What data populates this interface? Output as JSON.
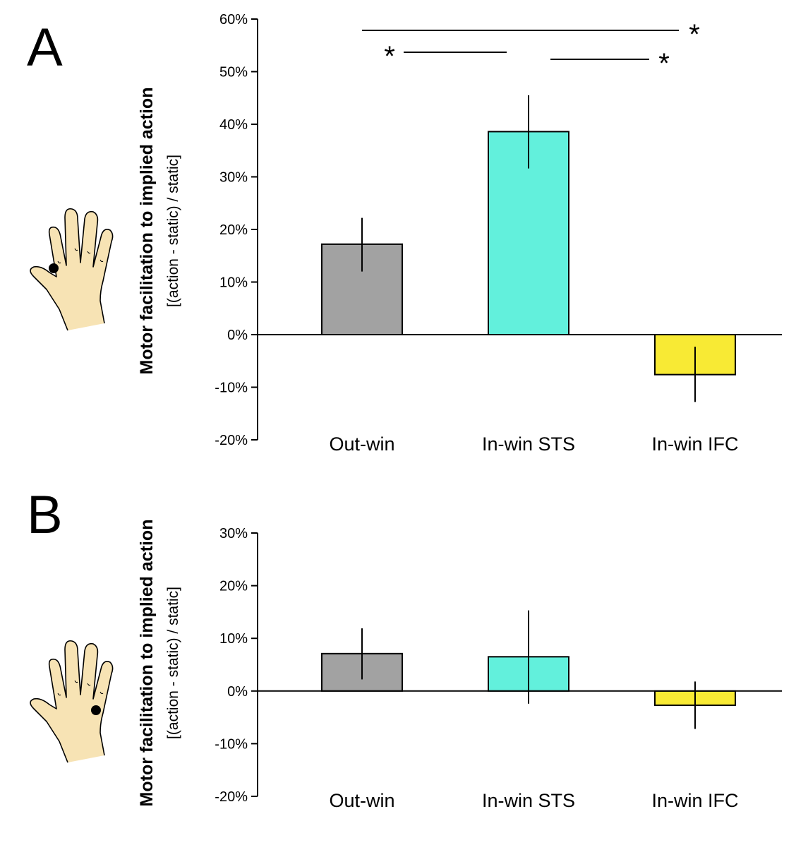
{
  "colors": {
    "out_win": "#a2a2a2",
    "in_win_sts": "#62f0dc",
    "in_win_ifc": "#f8ea34",
    "skin": "#f7e3b4",
    "axis": "#000000"
  },
  "chart_data": [
    {
      "type": "bar",
      "panel": "A",
      "categories": [
        "Out-win",
        "In-win STS",
        "In-win IFC"
      ],
      "values": [
        17.2,
        38.6,
        -7.6
      ],
      "error": [
        [
          12.0,
          22.2
        ],
        [
          31.6,
          45.5
        ],
        [
          -12.8,
          -2.3
        ]
      ],
      "ylabel": "Motor facilitation to implied action",
      "ylabel_sub": "[(action - static) / static]",
      "ylim": [
        -20,
        60
      ],
      "yticks": [
        60,
        50,
        40,
        30,
        20,
        10,
        0,
        -10,
        -20
      ],
      "ytick_labels": [
        "60%",
        "50%",
        "40%",
        "30%",
        "20%",
        "10%",
        "0%",
        "-10%",
        "-20%"
      ],
      "significance": [
        {
          "from": "Out-win",
          "to": "In-win IFC",
          "label": "*"
        },
        {
          "from": "Out-win",
          "to": "In-win STS",
          "label": "*"
        },
        {
          "from": "In-win STS",
          "to": "In-win IFC",
          "label": "*"
        }
      ],
      "icon": "hand-icon-index-site"
    },
    {
      "type": "bar",
      "panel": "B",
      "categories": [
        "Out-win",
        "In-win STS",
        "In-win IFC"
      ],
      "values": [
        7.1,
        6.5,
        -2.7
      ],
      "error": [
        [
          2.2,
          11.9
        ],
        [
          -2.4,
          15.3
        ],
        [
          -7.2,
          1.8
        ]
      ],
      "ylabel": "Motor facilitation to implied action",
      "ylabel_sub": "[(action - static) / static]",
      "ylim": [
        -20,
        30
      ],
      "yticks": [
        30,
        20,
        10,
        0,
        -10,
        -20
      ],
      "ytick_labels": [
        "30%",
        "20%",
        "10%",
        "0%",
        "-10%",
        "-20%"
      ],
      "significance": [],
      "icon": "hand-icon-pinky-site"
    }
  ]
}
